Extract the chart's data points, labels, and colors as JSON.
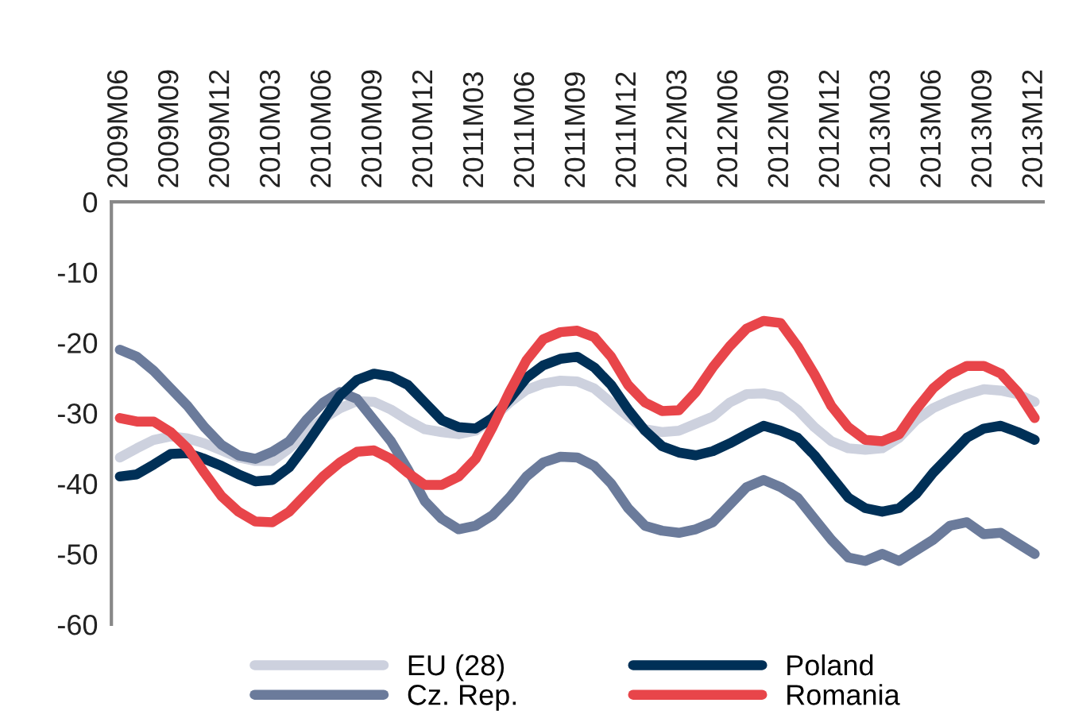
{
  "chart_data": {
    "type": "line",
    "categories": [
      "2009M06",
      null,
      null,
      "2009M09",
      null,
      null,
      "2009M12",
      null,
      null,
      "2010M03",
      null,
      null,
      "2010M06",
      null,
      null,
      "2010M09",
      null,
      null,
      "2010M12",
      null,
      null,
      "2011M03",
      null,
      null,
      "2011M06",
      null,
      null,
      "2011M09",
      null,
      null,
      "2011M12",
      null,
      null,
      "2012M03",
      null,
      null,
      "2012M06",
      null,
      null,
      "2012M09",
      null,
      null,
      "2012M12",
      null,
      null,
      "2013M03",
      null,
      null,
      "2013M06",
      null,
      null,
      "2013M09",
      null,
      null,
      "2013M12"
    ],
    "series": [
      {
        "name": "EU (28)",
        "color": "#cdd1de",
        "values": [
          -36.3,
          -35,
          -33.8,
          -33.3,
          -33.6,
          -34.3,
          -35.3,
          -36.3,
          -36.8,
          -36.8,
          -35,
          -32.8,
          -30.8,
          -29.3,
          -28.3,
          -28.4,
          -29.5,
          -31,
          -32.3,
          -32.7,
          -33,
          -32.5,
          -30.7,
          -28.5,
          -26.7,
          -25.8,
          -25.4,
          -25.5,
          -26.5,
          -28.5,
          -30.5,
          -32.3,
          -32.7,
          -32.5,
          -31.5,
          -30.5,
          -28.5,
          -27.3,
          -27.2,
          -27.7,
          -29.5,
          -32,
          -34,
          -35,
          -35.2,
          -35,
          -33.5,
          -31,
          -29.3,
          -28.2,
          -27.3,
          -26.6,
          -26.8,
          -27.3,
          -28.4
        ]
      },
      {
        "name": "Cz. Rep.",
        "color": "#6b7b9b",
        "values": [
          -21,
          -22,
          -24,
          -26.5,
          -29,
          -32,
          -34.5,
          -36,
          -36.5,
          -35.5,
          -34,
          -31,
          -28.5,
          -27,
          -28,
          -31,
          -34,
          -38,
          -42.5,
          -45,
          -46.5,
          -46,
          -44.5,
          -42,
          -39,
          -37,
          -36.2,
          -36.3,
          -37.5,
          -40,
          -43.5,
          -46,
          -46.7,
          -47,
          -46.5,
          -45.5,
          -43,
          -40.5,
          -39.5,
          -40.5,
          -42,
          -45,
          -48,
          -50.5,
          -51,
          -50,
          -51,
          -49.5,
          -48,
          -46,
          -45.5,
          -47.2,
          -47,
          -48.5,
          -50
        ]
      },
      {
        "name": "Poland",
        "color": "#003057",
        "values": [
          -39,
          -38.7,
          -37.3,
          -35.8,
          -35.7,
          -36.5,
          -37.5,
          -38.7,
          -39.7,
          -39.5,
          -37.7,
          -34.5,
          -31,
          -27.5,
          -25.3,
          -24.4,
          -24.8,
          -26,
          -28.5,
          -31,
          -32,
          -32.2,
          -30.7,
          -28,
          -25,
          -23.2,
          -22.3,
          -22,
          -23.5,
          -26,
          -29.5,
          -32.5,
          -34.7,
          -35.6,
          -36,
          -35.4,
          -34.3,
          -33,
          -31.8,
          -32.5,
          -33.5,
          -36,
          -39,
          -42,
          -43.5,
          -44,
          -43.5,
          -41.5,
          -38.5,
          -36,
          -33.5,
          -32.2,
          -31.8,
          -32.7,
          -33.8
        ]
      },
      {
        "name": "Romania",
        "color": "#e8454a",
        "values": [
          -30.7,
          -31.2,
          -31.2,
          -32.7,
          -35,
          -38.5,
          -41.8,
          -44,
          -45.4,
          -45.5,
          -44,
          -41.5,
          -39,
          -37,
          -35.5,
          -35.3,
          -36.5,
          -38.5,
          -40.2,
          -40.2,
          -39,
          -36.5,
          -32,
          -27,
          -22.5,
          -19.5,
          -18.5,
          -18.3,
          -19.2,
          -22,
          -26,
          -28.5,
          -29.7,
          -29.6,
          -27,
          -23.5,
          -20.5,
          -18,
          -16.9,
          -17.2,
          -20.5,
          -24.5,
          -29,
          -32,
          -33.8,
          -34,
          -33,
          -29.5,
          -26.5,
          -24.5,
          -23.3,
          -23.3,
          -24.4,
          -27,
          -30.7
        ]
      }
    ],
    "ylim": [
      -60,
      0
    ],
    "yticks": [
      0,
      -10,
      -20,
      -30,
      -40,
      -50,
      -60
    ],
    "legend": "bottom",
    "grid": false
  }
}
